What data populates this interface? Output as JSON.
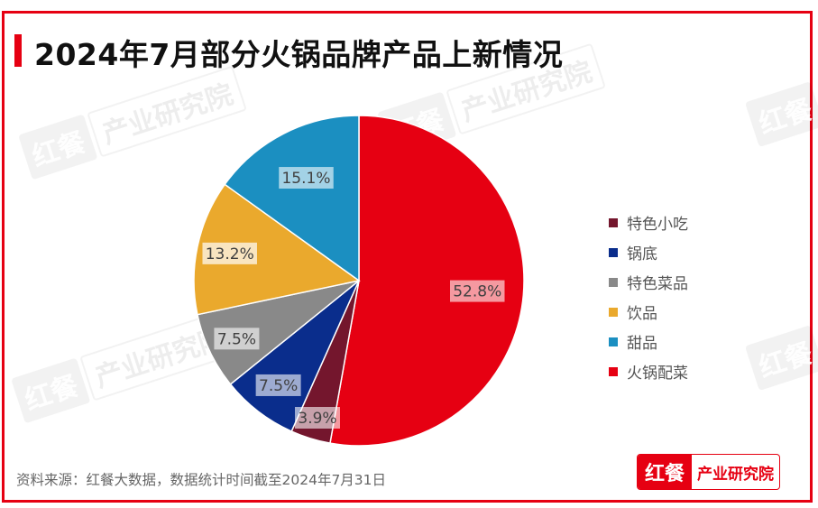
{
  "title": "2024年7月部分火锅品牌产品上新情况",
  "source": "资料来源：红餐大数据，数据统计时间截至2024年7月31日",
  "logo": {
    "left": "红餐",
    "right": "产业研究院"
  },
  "watermark": {
    "left": "红餐",
    "right": "产业研究院"
  },
  "colors": {
    "frame": "#e60012",
    "hotpot_sides": "#e60012",
    "snacks": "#74162d",
    "soup_base": "#0a2d8c",
    "special_dishes": "#898989",
    "drinks": "#eaa92d",
    "desserts": "#1b8fc1"
  },
  "legend": [
    {
      "label": "特色小吃",
      "color": "#74162d"
    },
    {
      "label": "锅底",
      "color": "#0a2d8c"
    },
    {
      "label": "特色菜品",
      "color": "#898989"
    },
    {
      "label": "饮品",
      "color": "#eaa92d"
    },
    {
      "label": "甜品",
      "color": "#1b8fc1"
    },
    {
      "label": "火锅配菜",
      "color": "#e60012"
    }
  ],
  "chart_data": {
    "type": "pie",
    "title": "2024年7月部分火锅品牌产品上新情况",
    "categories": [
      "火锅配菜",
      "特色小吃",
      "锅底",
      "特色菜品",
      "饮品",
      "甜品"
    ],
    "values": [
      52.8,
      3.9,
      7.5,
      7.5,
      13.2,
      15.1
    ],
    "labels": [
      "52.8%",
      "3.9%",
      "7.5%",
      "7.5%",
      "13.2%",
      "15.1%"
    ],
    "colors": [
      "#e60012",
      "#74162d",
      "#0a2d8c",
      "#898989",
      "#eaa92d",
      "#1b8fc1"
    ],
    "start_angle": "12 o'clock, clockwise",
    "legend_position": "right",
    "unit": "%"
  }
}
